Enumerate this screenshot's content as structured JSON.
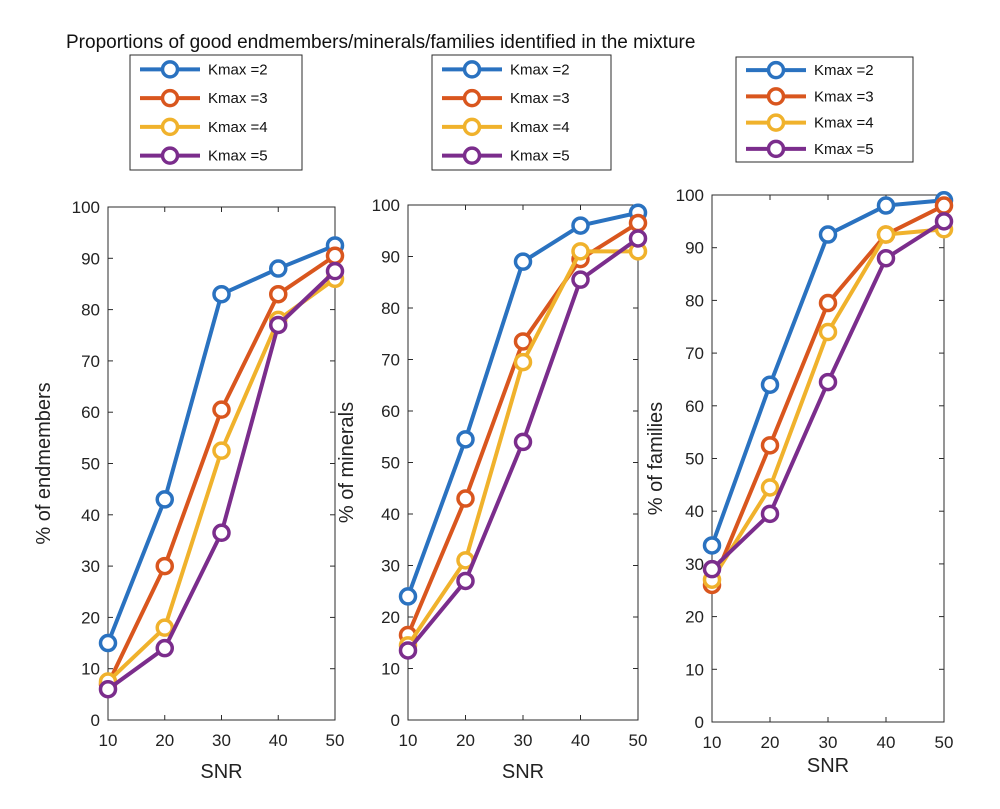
{
  "figure": {
    "title": "Proportions of good endmembers/minerals/families identified in the mixture"
  },
  "series_styles": [
    {
      "name": "Kmax =2",
      "color": "#2a72c0"
    },
    {
      "name": "Kmax =3",
      "color": "#d9561e"
    },
    {
      "name": "Kmax =4",
      "color": "#f0b22c"
    },
    {
      "name": "Kmax =5",
      "color": "#7b2d8c"
    }
  ],
  "chart_data": [
    {
      "type": "line",
      "xlabel": "SNR",
      "ylabel": "% of endmembers",
      "x": [
        10,
        20,
        30,
        40,
        50
      ],
      "xticks": [
        10,
        20,
        30,
        40,
        50
      ],
      "xlim": [
        10,
        50
      ],
      "yticks": [
        0,
        10,
        20,
        30,
        40,
        50,
        60,
        70,
        80,
        90,
        100
      ],
      "ylim": [
        0,
        100
      ],
      "grid": false,
      "legend": "top",
      "series": [
        {
          "name": "Kmax =2",
          "values": [
            15,
            43,
            83,
            88,
            92.5
          ]
        },
        {
          "name": "Kmax =3",
          "values": [
            7,
            30,
            60.5,
            83,
            90.5
          ]
        },
        {
          "name": "Kmax =4",
          "values": [
            7.5,
            18,
            52.5,
            78,
            86
          ]
        },
        {
          "name": "Kmax =5",
          "values": [
            6,
            14,
            36.5,
            77,
            87.5
          ]
        }
      ]
    },
    {
      "type": "line",
      "xlabel": "SNR",
      "ylabel": "% of minerals",
      "x": [
        10,
        20,
        30,
        40,
        50
      ],
      "xticks": [
        10,
        20,
        30,
        40,
        50
      ],
      "xlim": [
        10,
        50
      ],
      "yticks": [
        0,
        10,
        20,
        30,
        40,
        50,
        60,
        70,
        80,
        90,
        100
      ],
      "ylim": [
        0,
        100
      ],
      "grid": false,
      "legend": "top",
      "series": [
        {
          "name": "Kmax =2",
          "values": [
            24,
            54.5,
            89,
            96,
            98.5
          ]
        },
        {
          "name": "Kmax =3",
          "values": [
            16.5,
            43,
            73.5,
            89.5,
            96.5
          ]
        },
        {
          "name": "Kmax =4",
          "values": [
            14.5,
            31,
            69.5,
            91,
            91
          ]
        },
        {
          "name": "Kmax =5",
          "values": [
            13.5,
            27,
            54,
            85.5,
            93.5
          ]
        }
      ]
    },
    {
      "type": "line",
      "xlabel": "SNR",
      "ylabel": "% of families",
      "x": [
        10,
        20,
        30,
        40,
        50
      ],
      "xticks": [
        10,
        20,
        30,
        40,
        50
      ],
      "xlim": [
        10,
        50
      ],
      "yticks": [
        0,
        10,
        20,
        30,
        40,
        50,
        60,
        70,
        80,
        90,
        100
      ],
      "ylim": [
        0,
        100
      ],
      "grid": false,
      "legend": "top",
      "series": [
        {
          "name": "Kmax =2",
          "values": [
            33.5,
            64,
            92.5,
            98,
            99
          ]
        },
        {
          "name": "Kmax =3",
          "values": [
            26,
            52.5,
            79.5,
            92.5,
            98
          ]
        },
        {
          "name": "Kmax =4",
          "values": [
            27,
            44.5,
            74,
            92.5,
            93.5
          ]
        },
        {
          "name": "Kmax =5",
          "values": [
            29,
            39.5,
            64.5,
            88,
            95
          ]
        }
      ]
    }
  ]
}
